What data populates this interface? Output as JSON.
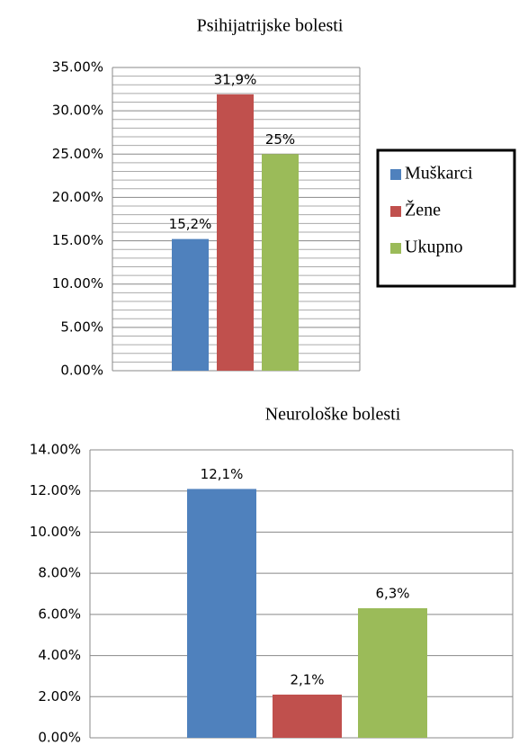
{
  "chart_data": [
    {
      "type": "bar",
      "title": "Psihijatrijske  bolesti",
      "series": [
        {
          "name": "Muškarci",
          "color": "#4f81bd",
          "values": [
            15.2
          ],
          "value_labels": [
            "15,2%"
          ]
        },
        {
          "name": "Žene",
          "color": "#c0504d",
          "values": [
            31.9
          ],
          "value_labels": [
            "31,9%"
          ]
        },
        {
          "name": "Ukupno",
          "color": "#9bbb59",
          "values": [
            25
          ],
          "value_labels": [
            "25%"
          ]
        }
      ],
      "ylim": [
        0,
        35
      ],
      "yticks": [
        {
          "value": 0,
          "label": "0.00%"
        },
        {
          "value": 5,
          "label": "5.00%"
        },
        {
          "value": 10,
          "label": "10.00%"
        },
        {
          "value": 15,
          "label": "15.00%"
        },
        {
          "value": 20,
          "label": "20.00%"
        },
        {
          "value": 25,
          "label": "25.00%"
        },
        {
          "value": 30,
          "label": "30.00%"
        },
        {
          "value": 35,
          "label": "35.00%"
        }
      ],
      "grid": true,
      "legend": "right"
    },
    {
      "type": "bar",
      "title": "Neurološke bolesti",
      "series": [
        {
          "color": "#4f81bd",
          "values": [
            12.1
          ],
          "value_labels": [
            "12,1%"
          ]
        },
        {
          "color": "#c0504d",
          "values": [
            2.1
          ],
          "value_labels": [
            "2,1%"
          ]
        },
        {
          "color": "#9bbb59",
          "values": [
            6.3
          ],
          "value_labels": [
            "6,3%"
          ]
        }
      ],
      "ylim": [
        0,
        14
      ],
      "yticks": [
        {
          "value": 0,
          "label": "0.00%"
        },
        {
          "value": 2,
          "label": "2.00%"
        },
        {
          "value": 4,
          "label": "4.00%"
        },
        {
          "value": 6,
          "label": "6.00%"
        },
        {
          "value": 8,
          "label": "8.00%"
        },
        {
          "value": 10,
          "label": "10.00%"
        },
        {
          "value": 12,
          "label": "12.00%"
        },
        {
          "value": 14,
          "label": "14.00%"
        }
      ],
      "grid": true
    }
  ]
}
